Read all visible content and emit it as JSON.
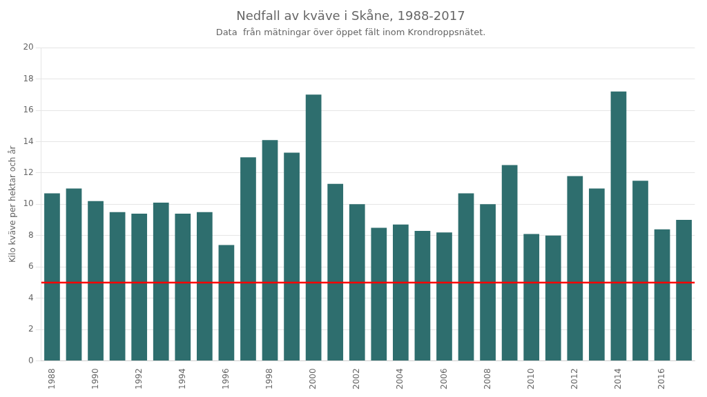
{
  "chart_data": {
    "type": "bar",
    "title": "Nedfall av kväve i Skåne, 1988-2017",
    "subtitle": "Data  från mätningar över öppet fält inom Krondroppsnätet.",
    "ylabel": "Kilo kväve per hektar och år",
    "categories": [
      "1988",
      null,
      "1990",
      null,
      "1992",
      null,
      "1994",
      null,
      "1996",
      null,
      "1998",
      null,
      "2000",
      null,
      "2002",
      null,
      "2004",
      null,
      "2006",
      null,
      "2008",
      null,
      "2010",
      null,
      "2012",
      null,
      "2014",
      null,
      "2016",
      null
    ],
    "values": [
      10.7,
      11.0,
      10.2,
      9.5,
      9.4,
      10.1,
      9.4,
      9.5,
      7.4,
      13.0,
      14.1,
      13.3,
      17.0,
      11.3,
      10.0,
      8.5,
      8.7,
      8.3,
      8.2,
      10.7,
      10.0,
      12.5,
      8.1,
      8.0,
      11.8,
      11.0,
      17.2,
      11.5,
      8.4,
      9.0
    ],
    "color": "#2E6E6E",
    "hlines": [
      {
        "y": 5.0,
        "color": "#FF0000"
      }
    ],
    "ylim": [
      0,
      20
    ],
    "yticks": [
      0,
      2,
      4,
      6,
      8,
      10,
      12,
      14,
      16,
      18,
      20
    ],
    "grid": true
  }
}
